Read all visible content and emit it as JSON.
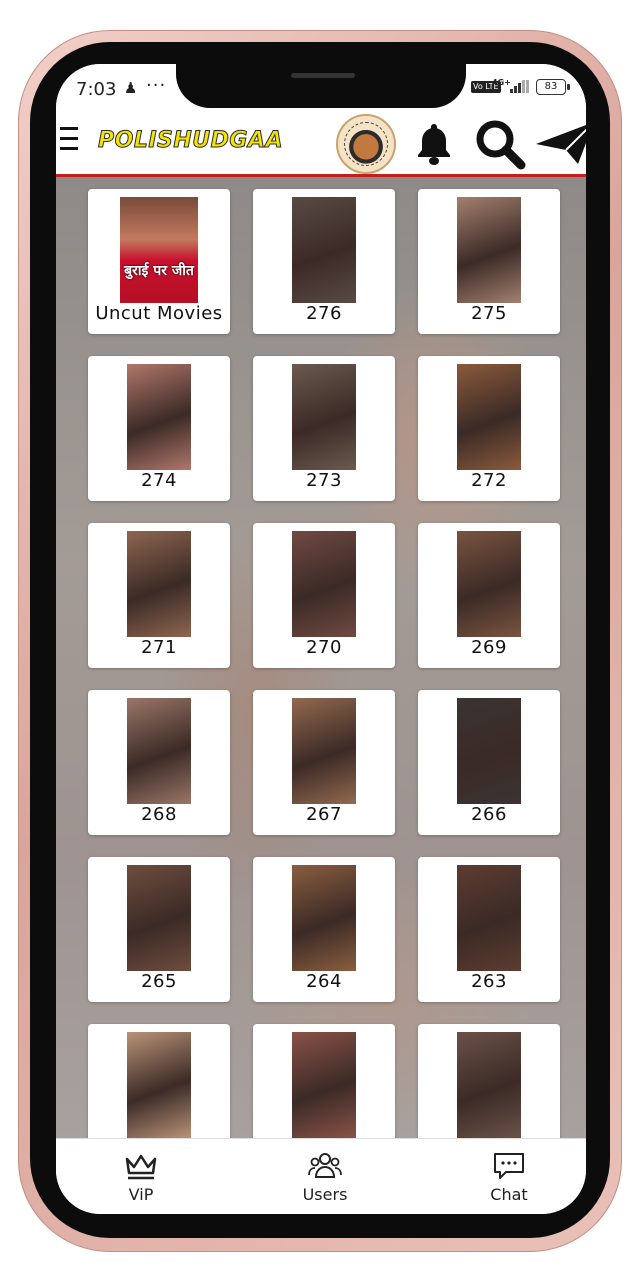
{
  "status_bar": {
    "time": "7:03",
    "notification_icon": "snapchat-ghost",
    "more": "···",
    "network": "4G+",
    "volte": "Vo LTE",
    "battery": "83"
  },
  "header": {
    "logo": "POLISHUDGAA"
  },
  "cards": [
    {
      "label": "Uncut Movies",
      "poster_text": "बुराई पर जीत",
      "thumb_color": "#b4453b"
    },
    {
      "label": "276",
      "thumb_color": "#5a4a44"
    },
    {
      "label": "275",
      "thumb_color": "#a3806f"
    },
    {
      "label": "274",
      "thumb_color": "#b0776b"
    },
    {
      "label": "273",
      "thumb_color": "#6b5a4e"
    },
    {
      "label": "272",
      "thumb_color": "#8a5a3c"
    },
    {
      "label": "271",
      "thumb_color": "#8e6650"
    },
    {
      "label": "270",
      "thumb_color": "#704a42"
    },
    {
      "label": "269",
      "thumb_color": "#7a5440"
    },
    {
      "label": "268",
      "thumb_color": "#9a7668"
    },
    {
      "label": "267",
      "thumb_color": "#93694f"
    },
    {
      "label": "266",
      "thumb_color": "#3a3432"
    },
    {
      "label": "265",
      "thumb_color": "#6e4d3e"
    },
    {
      "label": "264",
      "thumb_color": "#8a5d3f"
    },
    {
      "label": "263",
      "thumb_color": "#5d3c30"
    },
    {
      "label": "",
      "thumb_color": "#b99378"
    },
    {
      "label": "",
      "thumb_color": "#8a5248"
    },
    {
      "label": "",
      "thumb_color": "#6a5248"
    }
  ],
  "bottom_nav": [
    {
      "label": "ViP",
      "icon": "crown-icon"
    },
    {
      "label": "Users",
      "icon": "users-icon"
    },
    {
      "label": "Chat",
      "icon": "chat-icon"
    }
  ]
}
